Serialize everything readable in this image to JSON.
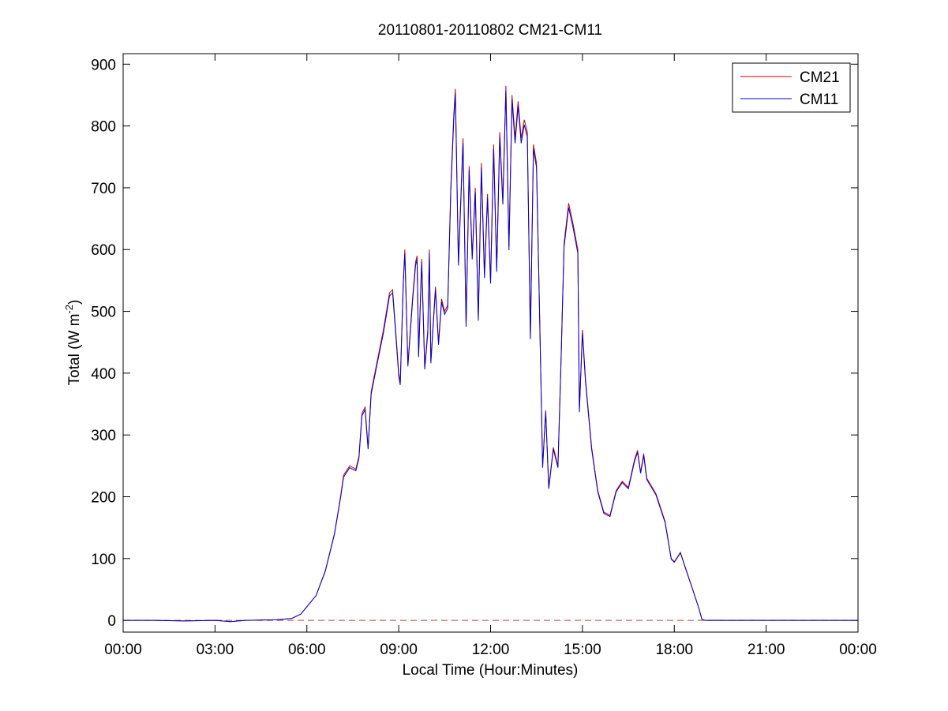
{
  "chart_data": {
    "type": "line",
    "title": "20110801-20110802 CM21-CM11",
    "xlabel": "Local Time (Hour:Minutes)",
    "ylabel": [
      "Total (W m",
      "-2",
      ")"
    ],
    "x": [
      0,
      1,
      2,
      3,
      3.5,
      4,
      5,
      5.5,
      5.8,
      6,
      6.3,
      6.6,
      6.9,
      7.1,
      7.2,
      7.4,
      7.6,
      7.7,
      7.8,
      7.9,
      8.0,
      8.1,
      8.3,
      8.5,
      8.7,
      8.8,
      8.9,
      9.0,
      9.05,
      9.15,
      9.2,
      9.3,
      9.45,
      9.55,
      9.6,
      9.65,
      9.75,
      9.85,
      9.95,
      10.0,
      10.05,
      10.2,
      10.3,
      10.4,
      10.5,
      10.6,
      10.7,
      10.8,
      10.85,
      10.95,
      11.1,
      11.2,
      11.3,
      11.4,
      11.5,
      11.6,
      11.7,
      11.8,
      11.9,
      12.0,
      12.1,
      12.2,
      12.3,
      12.4,
      12.5,
      12.6,
      12.7,
      12.8,
      12.9,
      13.0,
      13.1,
      13.2,
      13.3,
      13.4,
      13.5,
      13.6,
      13.7,
      13.8,
      13.9,
      14.05,
      14.2,
      14.3,
      14.4,
      14.55,
      14.7,
      14.85,
      14.9,
      15.0,
      15.1,
      15.3,
      15.5,
      15.7,
      15.9,
      16.1,
      16.3,
      16.5,
      16.7,
      16.8,
      16.9,
      17.0,
      17.1,
      17.4,
      17.7,
      17.9,
      18.0,
      18.2,
      18.4,
      18.6,
      18.8,
      18.9,
      19,
      20,
      21,
      22,
      23,
      24
    ],
    "series": [
      {
        "name": "CM21",
        "color": "#cc0000",
        "values": [
          0,
          0,
          -1,
          0,
          -2,
          0,
          1,
          3,
          10,
          22,
          40,
          80,
          140,
          200,
          235,
          250,
          245,
          265,
          335,
          345,
          280,
          370,
          420,
          470,
          530,
          535,
          470,
          400,
          385,
          550,
          600,
          415,
          520,
          580,
          590,
          430,
          585,
          410,
          470,
          600,
          420,
          540,
          450,
          520,
          500,
          510,
          700,
          820,
          860,
          580,
          780,
          480,
          735,
          590,
          700,
          490,
          740,
          560,
          690,
          550,
          770,
          570,
          790,
          680,
          865,
          605,
          850,
          780,
          840,
          780,
          810,
          790,
          460,
          770,
          740,
          500,
          250,
          340,
          215,
          280,
          250,
          420,
          610,
          675,
          640,
          600,
          340,
          470,
          390,
          280,
          210,
          175,
          170,
          210,
          225,
          215,
          260,
          275,
          240,
          270,
          230,
          205,
          160,
          100,
          95,
          110,
          80,
          50,
          20,
          2,
          0,
          0,
          0,
          0,
          0,
          0
        ]
      },
      {
        "name": "CM11",
        "color": "#0000cc",
        "values": [
          0,
          0,
          -1,
          0,
          -2,
          0,
          1,
          3,
          10,
          22,
          40,
          79,
          139,
          198,
          232,
          247,
          242,
          262,
          331,
          341,
          277,
          366,
          416,
          465,
          525,
          530,
          465,
          396,
          381,
          545,
          594,
          411,
          515,
          574,
          584,
          426,
          579,
          406,
          465,
          594,
          416,
          535,
          446,
          515,
          495,
          505,
          693,
          812,
          852,
          574,
          772,
          475,
          728,
          584,
          693,
          485,
          733,
          554,
          683,
          545,
          763,
          564,
          782,
          673,
          857,
          599,
          842,
          772,
          832,
          772,
          802,
          782,
          455,
          763,
          733,
          495,
          247,
          337,
          213,
          277,
          247,
          416,
          604,
          668,
          634,
          594,
          337,
          465,
          386,
          277,
          208,
          173,
          168,
          208,
          223,
          213,
          257,
          272,
          238,
          267,
          228,
          203,
          158,
          99,
          94,
          109,
          79,
          50,
          20,
          2,
          0,
          0,
          0,
          0,
          0,
          0
        ]
      }
    ],
    "xlim": [
      0,
      24
    ],
    "xticks": [
      {
        "value": 0,
        "label": "00:00"
      },
      {
        "value": 3,
        "label": "03:00"
      },
      {
        "value": 6,
        "label": "06:00"
      },
      {
        "value": 9,
        "label": "09:00"
      },
      {
        "value": 12,
        "label": "12:00"
      },
      {
        "value": 15,
        "label": "15:00"
      },
      {
        "value": 18,
        "label": "18:00"
      },
      {
        "value": 21,
        "label": "21:00"
      },
      {
        "value": 24,
        "label": "00:00"
      }
    ],
    "ylim": [
      -19,
      917
    ],
    "yticks": [
      0,
      100,
      200,
      300,
      400,
      500,
      600,
      700,
      800,
      900
    ],
    "hline": 0,
    "hline_color": "#c04040",
    "grid": false,
    "legend": "upper right"
  }
}
